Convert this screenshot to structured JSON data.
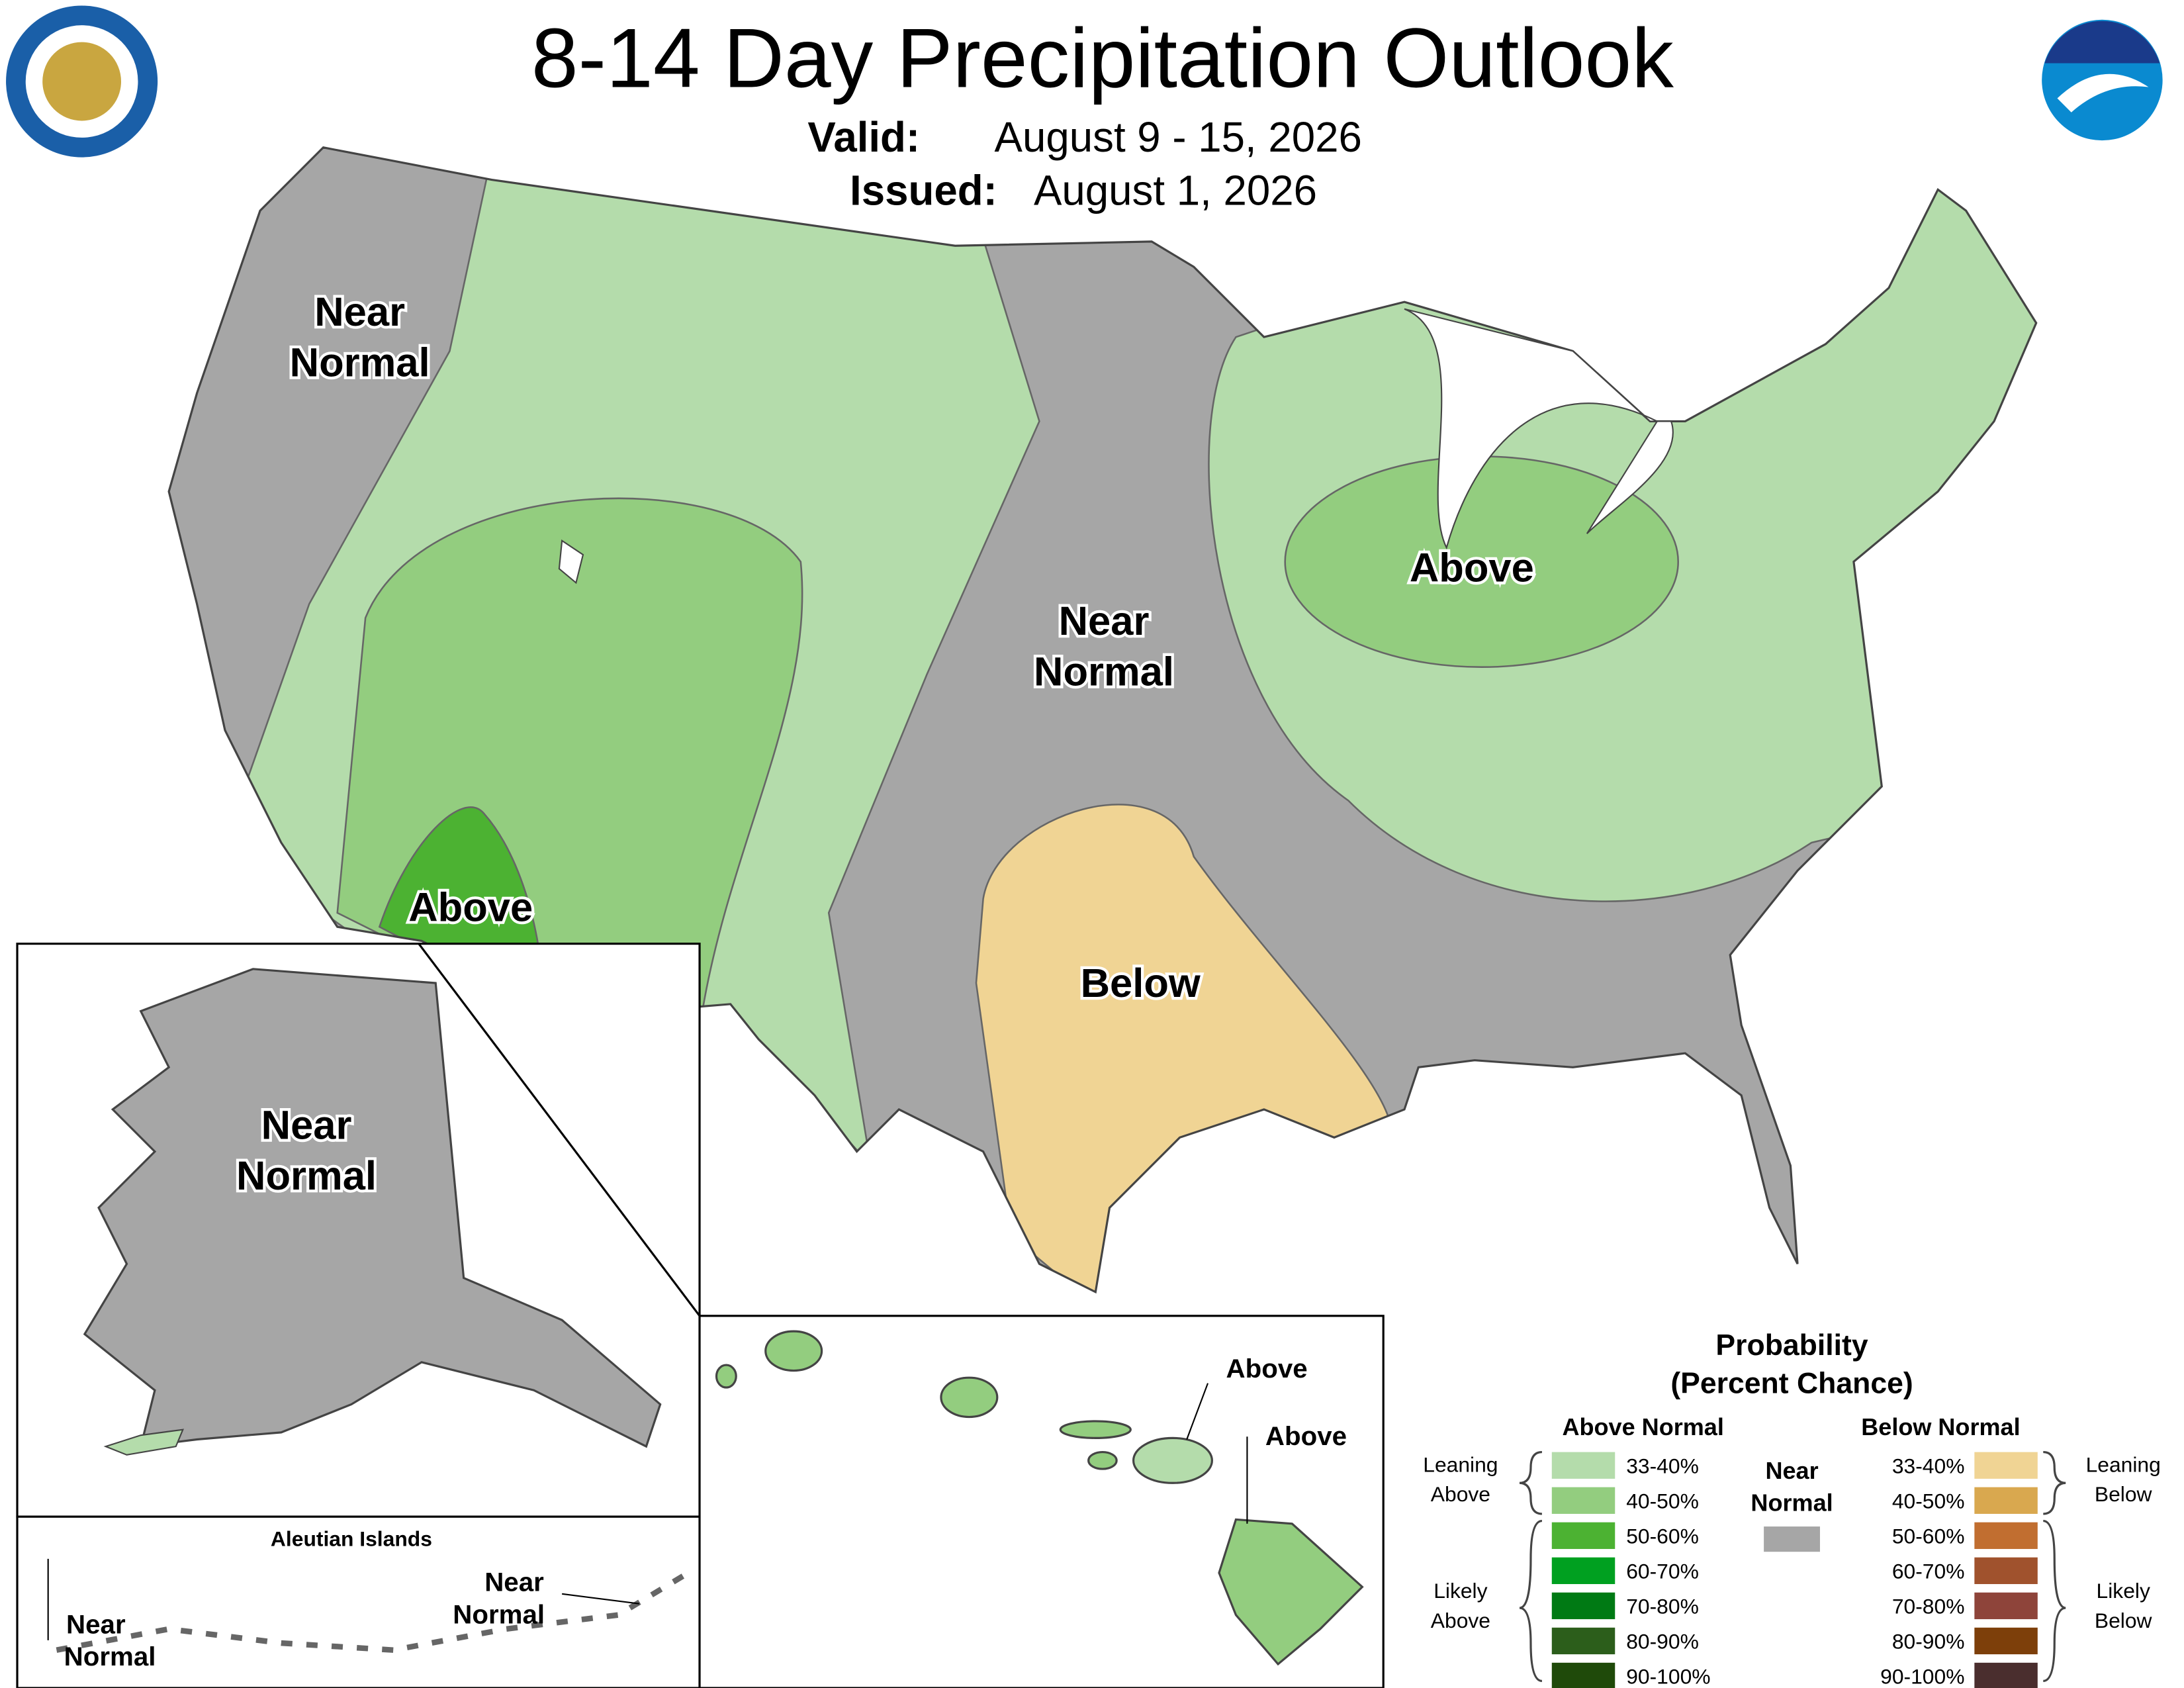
{
  "header": {
    "title": "8-14 Day Precipitation Outlook",
    "valid_label": "Valid:",
    "valid": "August 9 - 15, 2026",
    "issued_label": "Issued:",
    "issued": "August 1, 2026"
  },
  "conus_labels": [
    {
      "lines": [
        "Near",
        "Normal"
      ]
    },
    {
      "lines": [
        "Above"
      ]
    },
    {
      "lines": [
        "Near",
        "Normal"
      ]
    },
    {
      "lines": [
        "Above"
      ]
    },
    {
      "lines": [
        "Below"
      ]
    }
  ],
  "alaska": {
    "lines": [
      "Near",
      "Normal"
    ]
  },
  "aleutians": {
    "title": "Aleutian Islands",
    "west": [
      "Near",
      "Normal"
    ],
    "east": [
      "Near",
      "Normal"
    ]
  },
  "hawaii": {
    "maui": "Above",
    "big_island": "Above"
  },
  "legend": {
    "title": "Probability",
    "subtitle": "(Percent Chance)",
    "above": {
      "title": "Above Normal",
      "items": [
        {
          "label": "33-40%",
          "color": "#b4dcab"
        },
        {
          "label": "40-50%",
          "color": "#93cd7f"
        },
        {
          "label": "50-60%",
          "color": "#4cb232"
        },
        {
          "label": "60-70%",
          "color": "#00a020"
        },
        {
          "label": "70-80%",
          "color": "#007a14"
        },
        {
          "label": "80-90%",
          "color": "#2c5e1b"
        },
        {
          "label": "90-100%",
          "color": "#1f4a0a"
        }
      ]
    },
    "near": {
      "lines": [
        "Near",
        "Normal"
      ],
      "color": "#a6a6a6"
    },
    "below": {
      "title": "Below Normal",
      "items": [
        {
          "label": "33-40%",
          "color": "#f0d494"
        },
        {
          "label": "40-50%",
          "color": "#d9a84f"
        },
        {
          "label": "50-60%",
          "color": "#c16e30"
        },
        {
          "label": "60-70%",
          "color": "#a0522d"
        },
        {
          "label": "70-80%",
          "color": "#8e443a"
        },
        {
          "label": "80-90%",
          "color": "#7d3f0a"
        },
        {
          "label": "90-100%",
          "color": "#4a2e2e"
        }
      ]
    },
    "leaning_above": [
      "Leaning",
      "Above"
    ],
    "likely_above": [
      "Likely",
      "Above"
    ],
    "leaning_below": [
      "Leaning",
      "Below"
    ],
    "likely_below": [
      "Likely",
      "Below"
    ]
  }
}
